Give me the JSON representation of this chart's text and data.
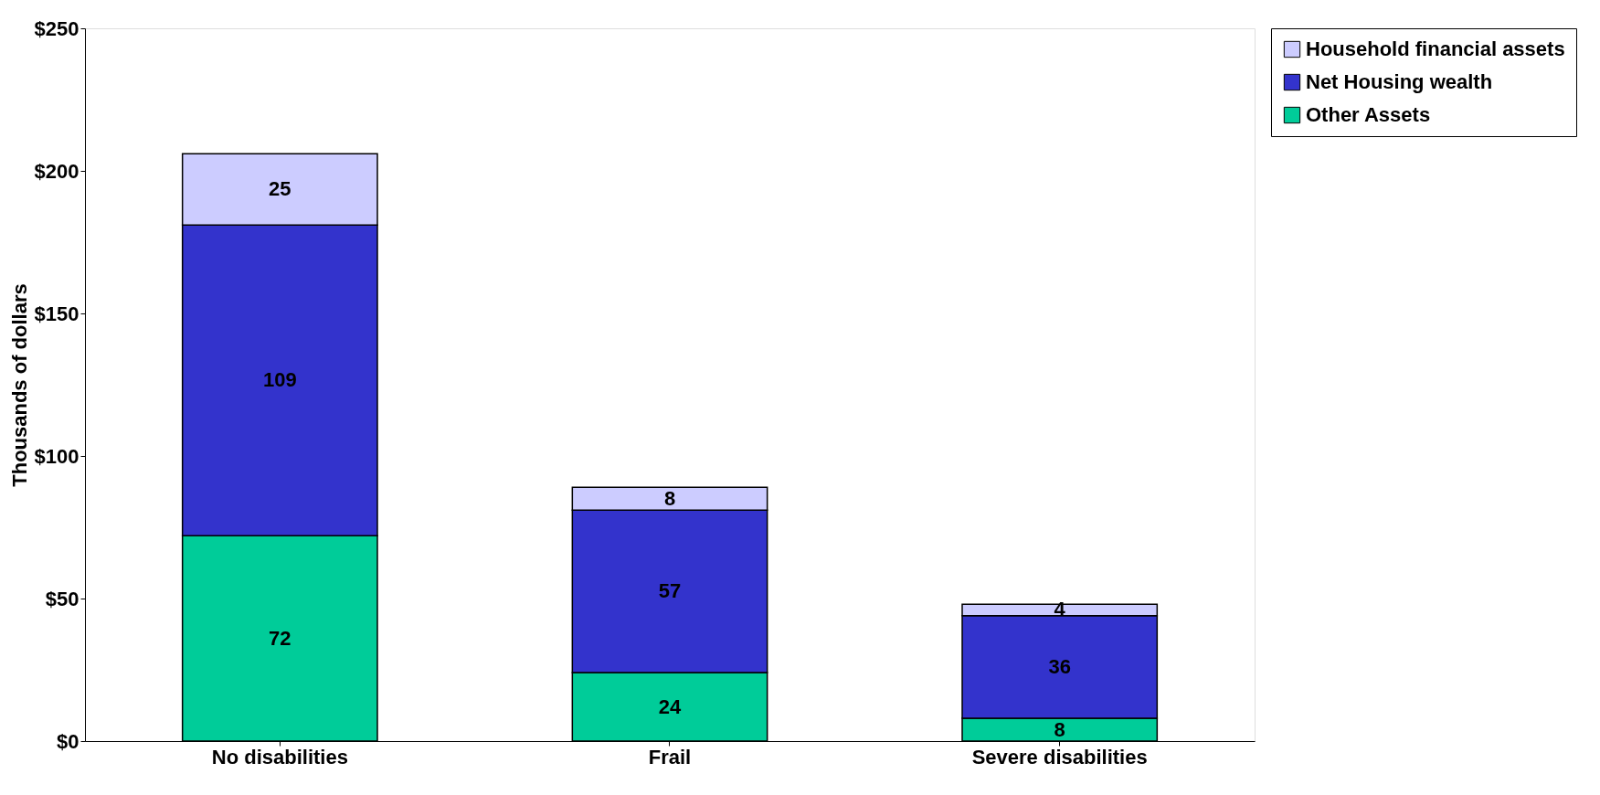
{
  "chart_data": {
    "type": "bar",
    "stacked": true,
    "ylabel": "Thousands of dollars",
    "categories": [
      "No disabilities",
      "Frail",
      "Severe disabilities"
    ],
    "series": [
      {
        "name": "Other Assets",
        "color": "#00cc99",
        "values": [
          72,
          24,
          8
        ]
      },
      {
        "name": "Net Housing wealth",
        "color": "#3333cc",
        "values": [
          109,
          57,
          36
        ]
      },
      {
        "name": "Household financial assets",
        "color": "#ccccff",
        "values": [
          25,
          8,
          4
        ]
      }
    ],
    "ylim": [
      0,
      250
    ],
    "yticks": [
      {
        "value": 0,
        "label": "$0"
      },
      {
        "value": 50,
        "label": "$50"
      },
      {
        "value": 100,
        "label": "$100"
      },
      {
        "value": 150,
        "label": "$150"
      },
      {
        "value": 200,
        "label": "$200"
      },
      {
        "value": 250,
        "label": "$250"
      }
    ],
    "data_labels": true,
    "grid": false,
    "legend": "right"
  }
}
